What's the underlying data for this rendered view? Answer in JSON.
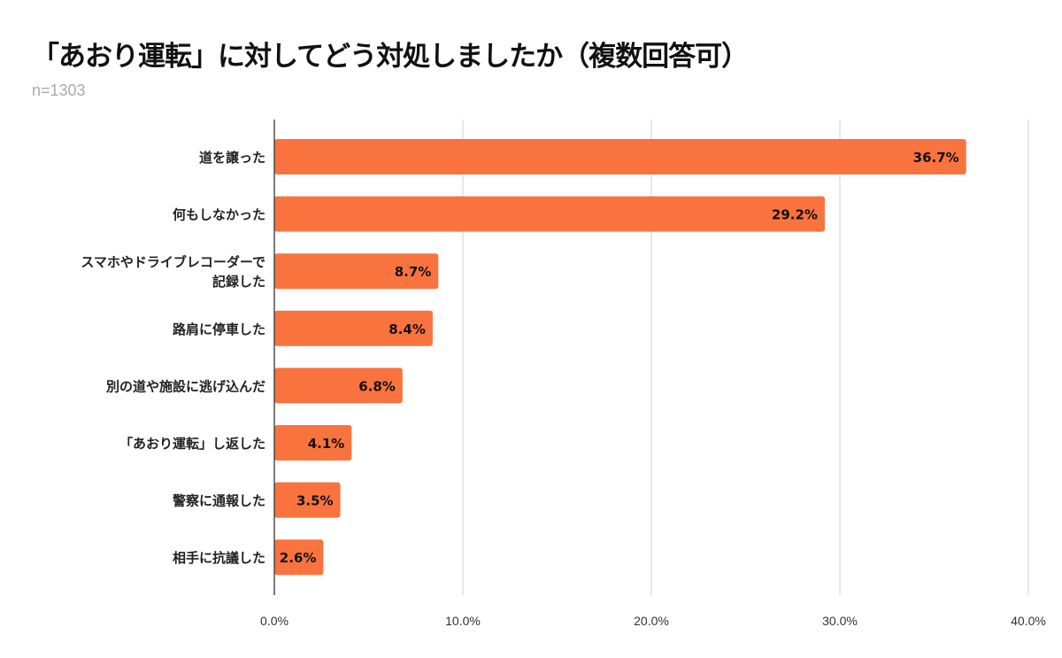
{
  "chart_data": {
    "type": "bar",
    "orientation": "horizontal",
    "title": "「あおり運転」に対してどう対処しましたか（複数回答可）",
    "subtitle": "n=1303",
    "categories": [
      [
        "道を譲った"
      ],
      [
        "何もしなかった"
      ],
      [
        "スマホやドライブレコーダーで",
        "記録した"
      ],
      [
        "路肩に停車した"
      ],
      [
        "別の道や施設に逃げ込んだ"
      ],
      [
        "「あおり運転」し返した"
      ],
      [
        "警察に通報した"
      ],
      [
        "相手に抗議した"
      ]
    ],
    "values": [
      36.7,
      29.2,
      8.7,
      8.4,
      6.8,
      4.1,
      3.5,
      2.6
    ],
    "data_labels": [
      "36.7%",
      "29.2%",
      "8.7%",
      "8.4%",
      "6.8%",
      "4.1%",
      "3.5%",
      "2.6%"
    ],
    "xlim": [
      0,
      40
    ],
    "xticks": [
      0,
      10,
      20,
      30,
      40
    ],
    "xtick_labels": [
      "0.0%",
      "10.0%",
      "20.0%",
      "30.0%",
      "40.0%"
    ],
    "xlabel": "",
    "ylabel": "",
    "grid": true,
    "bar_color": "#f9733f"
  }
}
